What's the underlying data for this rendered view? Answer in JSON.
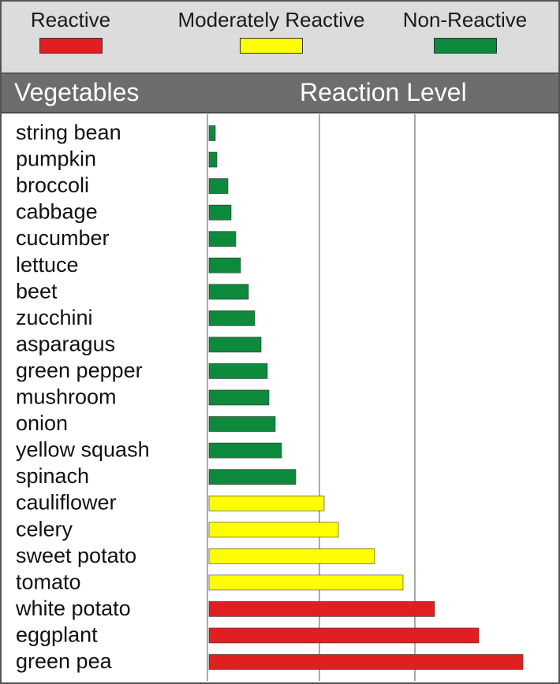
{
  "legend": {
    "reactive": {
      "label": "Reactive",
      "color": "#e02020"
    },
    "moderate": {
      "label": "Moderately Reactive",
      "color": "#ffff00"
    },
    "nonreactive": {
      "label": "Non-Reactive",
      "color": "#0e8a3c"
    }
  },
  "header": {
    "left": "Vegetables",
    "right": "Reaction Level"
  },
  "chart_data": {
    "type": "bar",
    "orientation": "horizontal",
    "xlim": [
      0,
      100
    ],
    "grid": "vertical",
    "legend_placement": "top",
    "categories": [
      "string bean",
      "pumpkin",
      "broccoli",
      "cabbage",
      "cucumber",
      "lettuce",
      "beet",
      "zucchini",
      "asparagus",
      "green pepper",
      "mushroom",
      "onion",
      "yellow squash",
      "spinach",
      "cauliflower",
      "celery",
      "sweet potato",
      "tomato",
      "white potato",
      "eggplant",
      "green pea"
    ],
    "values": [
      2.5,
      3,
      6.5,
      7.5,
      9,
      10.5,
      13,
      15,
      17,
      19,
      19.5,
      21.5,
      23.5,
      28,
      37,
      41.5,
      53,
      62,
      72,
      86,
      100
    ],
    "levels": [
      "Non-Reactive",
      "Non-Reactive",
      "Non-Reactive",
      "Non-Reactive",
      "Non-Reactive",
      "Non-Reactive",
      "Non-Reactive",
      "Non-Reactive",
      "Non-Reactive",
      "Non-Reactive",
      "Non-Reactive",
      "Non-Reactive",
      "Non-Reactive",
      "Non-Reactive",
      "Moderately Reactive",
      "Moderately Reactive",
      "Moderately Reactive",
      "Moderately Reactive",
      "Reactive",
      "Reactive",
      "Reactive"
    ]
  }
}
